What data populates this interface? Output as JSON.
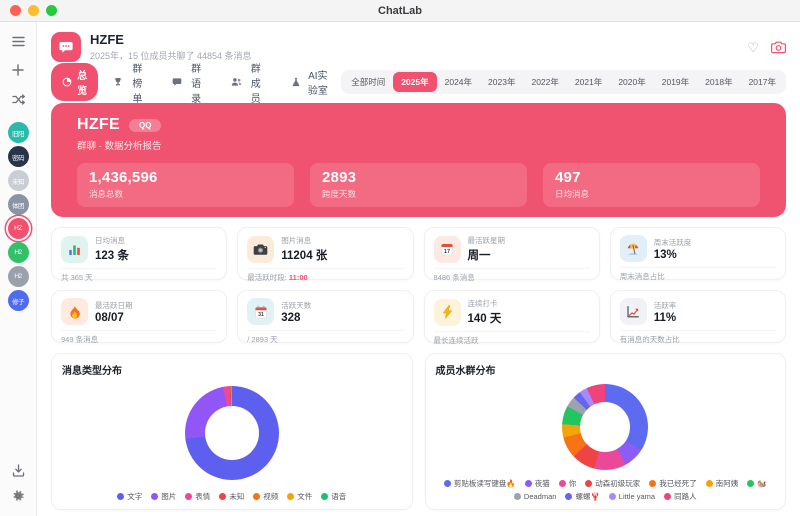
{
  "titlebar": {
    "app_title": "ChatLab"
  },
  "sidebar": {
    "chats": [
      {
        "label": "旧阳",
        "color": "#2CB9A9",
        "active": false
      },
      {
        "label": "密码",
        "color": "#273449",
        "active": false
      },
      {
        "label": "未知",
        "color": "#C9CDD4",
        "active": false
      },
      {
        "label": "体团",
        "color": "#8A94A6",
        "active": false
      },
      {
        "label": "HZ",
        "color": "#F1506E",
        "active": true
      },
      {
        "label": "H2",
        "color": "#34C06A",
        "active": false
      },
      {
        "label": "H2",
        "color": "#9AA1AB",
        "active": false
      },
      {
        "label": "修子",
        "color": "#4F6BF0",
        "active": false
      }
    ]
  },
  "header": {
    "group_name": "HZFE",
    "subtitle": "2025年，15 位成员共聊了 44854 条消息"
  },
  "tabs": [
    {
      "label": "总览",
      "icon": "overview",
      "active": true
    },
    {
      "label": "群榜单",
      "icon": "trophy",
      "active": false
    },
    {
      "label": "群语录",
      "icon": "bubble",
      "active": false
    },
    {
      "label": "群成员",
      "icon": "users",
      "active": false
    },
    {
      "label": "AI实验室",
      "icon": "flask",
      "active": false
    }
  ],
  "year_filters": [
    {
      "label": "全部时间",
      "active": false
    },
    {
      "label": "2025年",
      "active": true
    },
    {
      "label": "2024年",
      "active": false
    },
    {
      "label": "2023年",
      "active": false
    },
    {
      "label": "2022年",
      "active": false
    },
    {
      "label": "2021年",
      "active": false
    },
    {
      "label": "2020年",
      "active": false
    },
    {
      "label": "2019年",
      "active": false
    },
    {
      "label": "2018年",
      "active": false
    },
    {
      "label": "2017年",
      "active": false
    }
  ],
  "hero": {
    "title": "HZFE",
    "badge": "QQ",
    "subtitle": "群聊 · 数据分析报告",
    "accent_color": "#F0536F",
    "stats": [
      {
        "value": "1,436,596",
        "label": "消息总数"
      },
      {
        "value": "2893",
        "label": "跨度天数"
      },
      {
        "value": "497",
        "label": "日均消息"
      }
    ]
  },
  "stat_cards": [
    {
      "label": "日均消息",
      "value": "123 条",
      "footer": "共 365 天",
      "footer_accent": "",
      "icon": "bar-chart",
      "icon_bg": "#E1F3EE"
    },
    {
      "label": "图片消息",
      "value": "11204 张",
      "footer": "最活跃时段: ",
      "footer_accent": "11:00",
      "icon": "camera",
      "icon_bg": "#FBECDA"
    },
    {
      "label": "最活跃星期",
      "value": "周一",
      "footer": "8486 条消息",
      "footer_accent": "",
      "icon": "calendar-date",
      "icon_bg": "#FCE9E1"
    },
    {
      "label": "周末活跃度",
      "value": "13%",
      "footer": "周末消息占比",
      "footer_accent": "",
      "icon": "beach-umbrella",
      "icon_bg": "#E2EFF8"
    },
    {
      "label": "最活跃日期",
      "value": "08/07",
      "footer": "949 条消息",
      "footer_accent": "",
      "icon": "flame",
      "icon_bg": "#FDEBDF"
    },
    {
      "label": "活跃天数",
      "value": "328",
      "footer": "/ 2893 天",
      "footer_accent": "",
      "icon": "calendar-teal",
      "icon_bg": "#E0F2F3"
    },
    {
      "label": "连续打卡",
      "value": "140 天",
      "footer": "最长连续活跃",
      "footer_accent": "",
      "icon": "lightning",
      "icon_bg": "#FCF3DB"
    },
    {
      "label": "活跃率",
      "value": "11%",
      "footer": "有消息的天数占比",
      "footer_accent": "",
      "icon": "line-chart",
      "icon_bg": "#F1F2F5"
    }
  ],
  "chart_data": [
    {
      "type": "pie",
      "title": "消息类型分布",
      "labels": [
        "文字",
        "图片",
        "表情",
        "未知",
        "视频",
        "文件",
        "语音"
      ],
      "values": [
        73,
        24,
        2.2,
        0.3,
        0.2,
        0.2,
        0.1
      ],
      "colors": [
        "#5D5FEF",
        "#9255F6",
        "#EC4899",
        "#EF4444",
        "#F97316",
        "#F5A30B",
        "#1FBF6B"
      ],
      "hole": 0.56,
      "legend_position": "bottom"
    },
    {
      "type": "pie",
      "title": "成员水群分布",
      "labels": [
        "剪贴板读写键盘🔥",
        "夜猫",
        "你",
        "动森初级玩家",
        "我已经死了",
        "南阿姨",
        "🐿️",
        "Deadman",
        "螺螺🦞",
        "Little yama",
        "同路人"
      ],
      "values": [
        34,
        8,
        12,
        9,
        8,
        5,
        7,
        4,
        3,
        3,
        7
      ],
      "colors": [
        "#5D6BF0",
        "#8B5CF6",
        "#EC4899",
        "#EF4444",
        "#F97316",
        "#F5A30B",
        "#22C55E",
        "#9CA3AF",
        "#6366F1",
        "#A78BFA",
        "#F0437E"
      ],
      "hole": 0.56,
      "legend_position": "bottom"
    }
  ]
}
